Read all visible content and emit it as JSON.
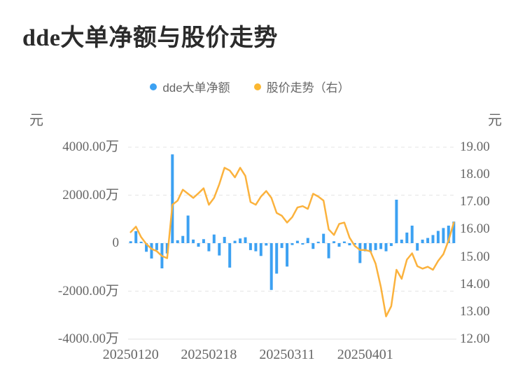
{
  "title": "dde大单净额与股价走势",
  "legend": {
    "items": [
      {
        "label": "dde大单净额",
        "color": "#3ca1f2"
      },
      {
        "label": "股价走势（右）",
        "color": "#fbb731"
      }
    ]
  },
  "chart_data": {
    "type": "combo",
    "title": "dde大单净额与股价走势",
    "x_description": "consecutive trading days from 20250120",
    "x_count": 63,
    "x_tick_labels": [
      "20250120",
      "20250218",
      "20250311",
      "20250401"
    ],
    "x_tick_indices": [
      0,
      15,
      30,
      45
    ],
    "left_axis": {
      "unit": "元",
      "tick_labels": [
        "4000.00万",
        "2000.00万",
        "0",
        "-2000.00万",
        "-4000.00万"
      ],
      "range_wan": [
        -4000,
        4000
      ]
    },
    "right_axis": {
      "unit": "元",
      "tick_labels": [
        "19.00",
        "18.00",
        "17.00",
        "16.00",
        "15.00",
        "14.00",
        "13.00",
        "12.00"
      ],
      "range": [
        12,
        19
      ]
    },
    "grid": {
      "horizontal": true,
      "style": "dashed",
      "color": "#e4e4e4",
      "bottom_axis_color": "#e0e0e0"
    },
    "legend_position": "top-center",
    "series": [
      {
        "name": "dde大单净额",
        "type": "bar",
        "y_axis": "left",
        "unit": "万元",
        "color": "#3ca1f2",
        "values": [
          80,
          500,
          60,
          -360,
          -640,
          -290,
          -1050,
          -430,
          3700,
          120,
          300,
          1150,
          150,
          -150,
          165,
          -340,
          360,
          -515,
          260,
          -1020,
          100,
          195,
          245,
          -290,
          -340,
          -535,
          -100,
          -1950,
          -1270,
          -200,
          -975,
          -80,
          100,
          -60,
          215,
          -240,
          60,
          390,
          -630,
          80,
          -150,
          70,
          -90,
          -60,
          -830,
          -340,
          -370,
          -290,
          -245,
          -340,
          -120,
          1810,
          145,
          440,
          730,
          -310,
          145,
          215,
          340,
          510,
          630,
          730,
          900
        ]
      },
      {
        "name": "股价走势",
        "type": "line",
        "y_axis": "right",
        "unit": "元",
        "color": "#fbb23d",
        "values": [
          15.9,
          16.1,
          15.72,
          15.47,
          15.29,
          15.21,
          15.03,
          14.95,
          16.9,
          17.05,
          17.45,
          17.3,
          17.15,
          17.32,
          17.5,
          16.9,
          17.15,
          17.65,
          18.25,
          18.15,
          17.9,
          18.25,
          17.95,
          17.0,
          16.9,
          17.2,
          17.4,
          17.15,
          16.6,
          16.5,
          16.25,
          16.45,
          16.8,
          16.85,
          16.75,
          17.3,
          17.2,
          17.05,
          16.0,
          15.8,
          16.2,
          16.25,
          15.7,
          15.4,
          15.25,
          15.25,
          15.2,
          14.75,
          13.9,
          12.83,
          13.2,
          14.53,
          14.2,
          14.9,
          15.13,
          14.66,
          14.57,
          14.64,
          14.53,
          14.85,
          15.1,
          15.6,
          16.25
        ]
      }
    ]
  }
}
